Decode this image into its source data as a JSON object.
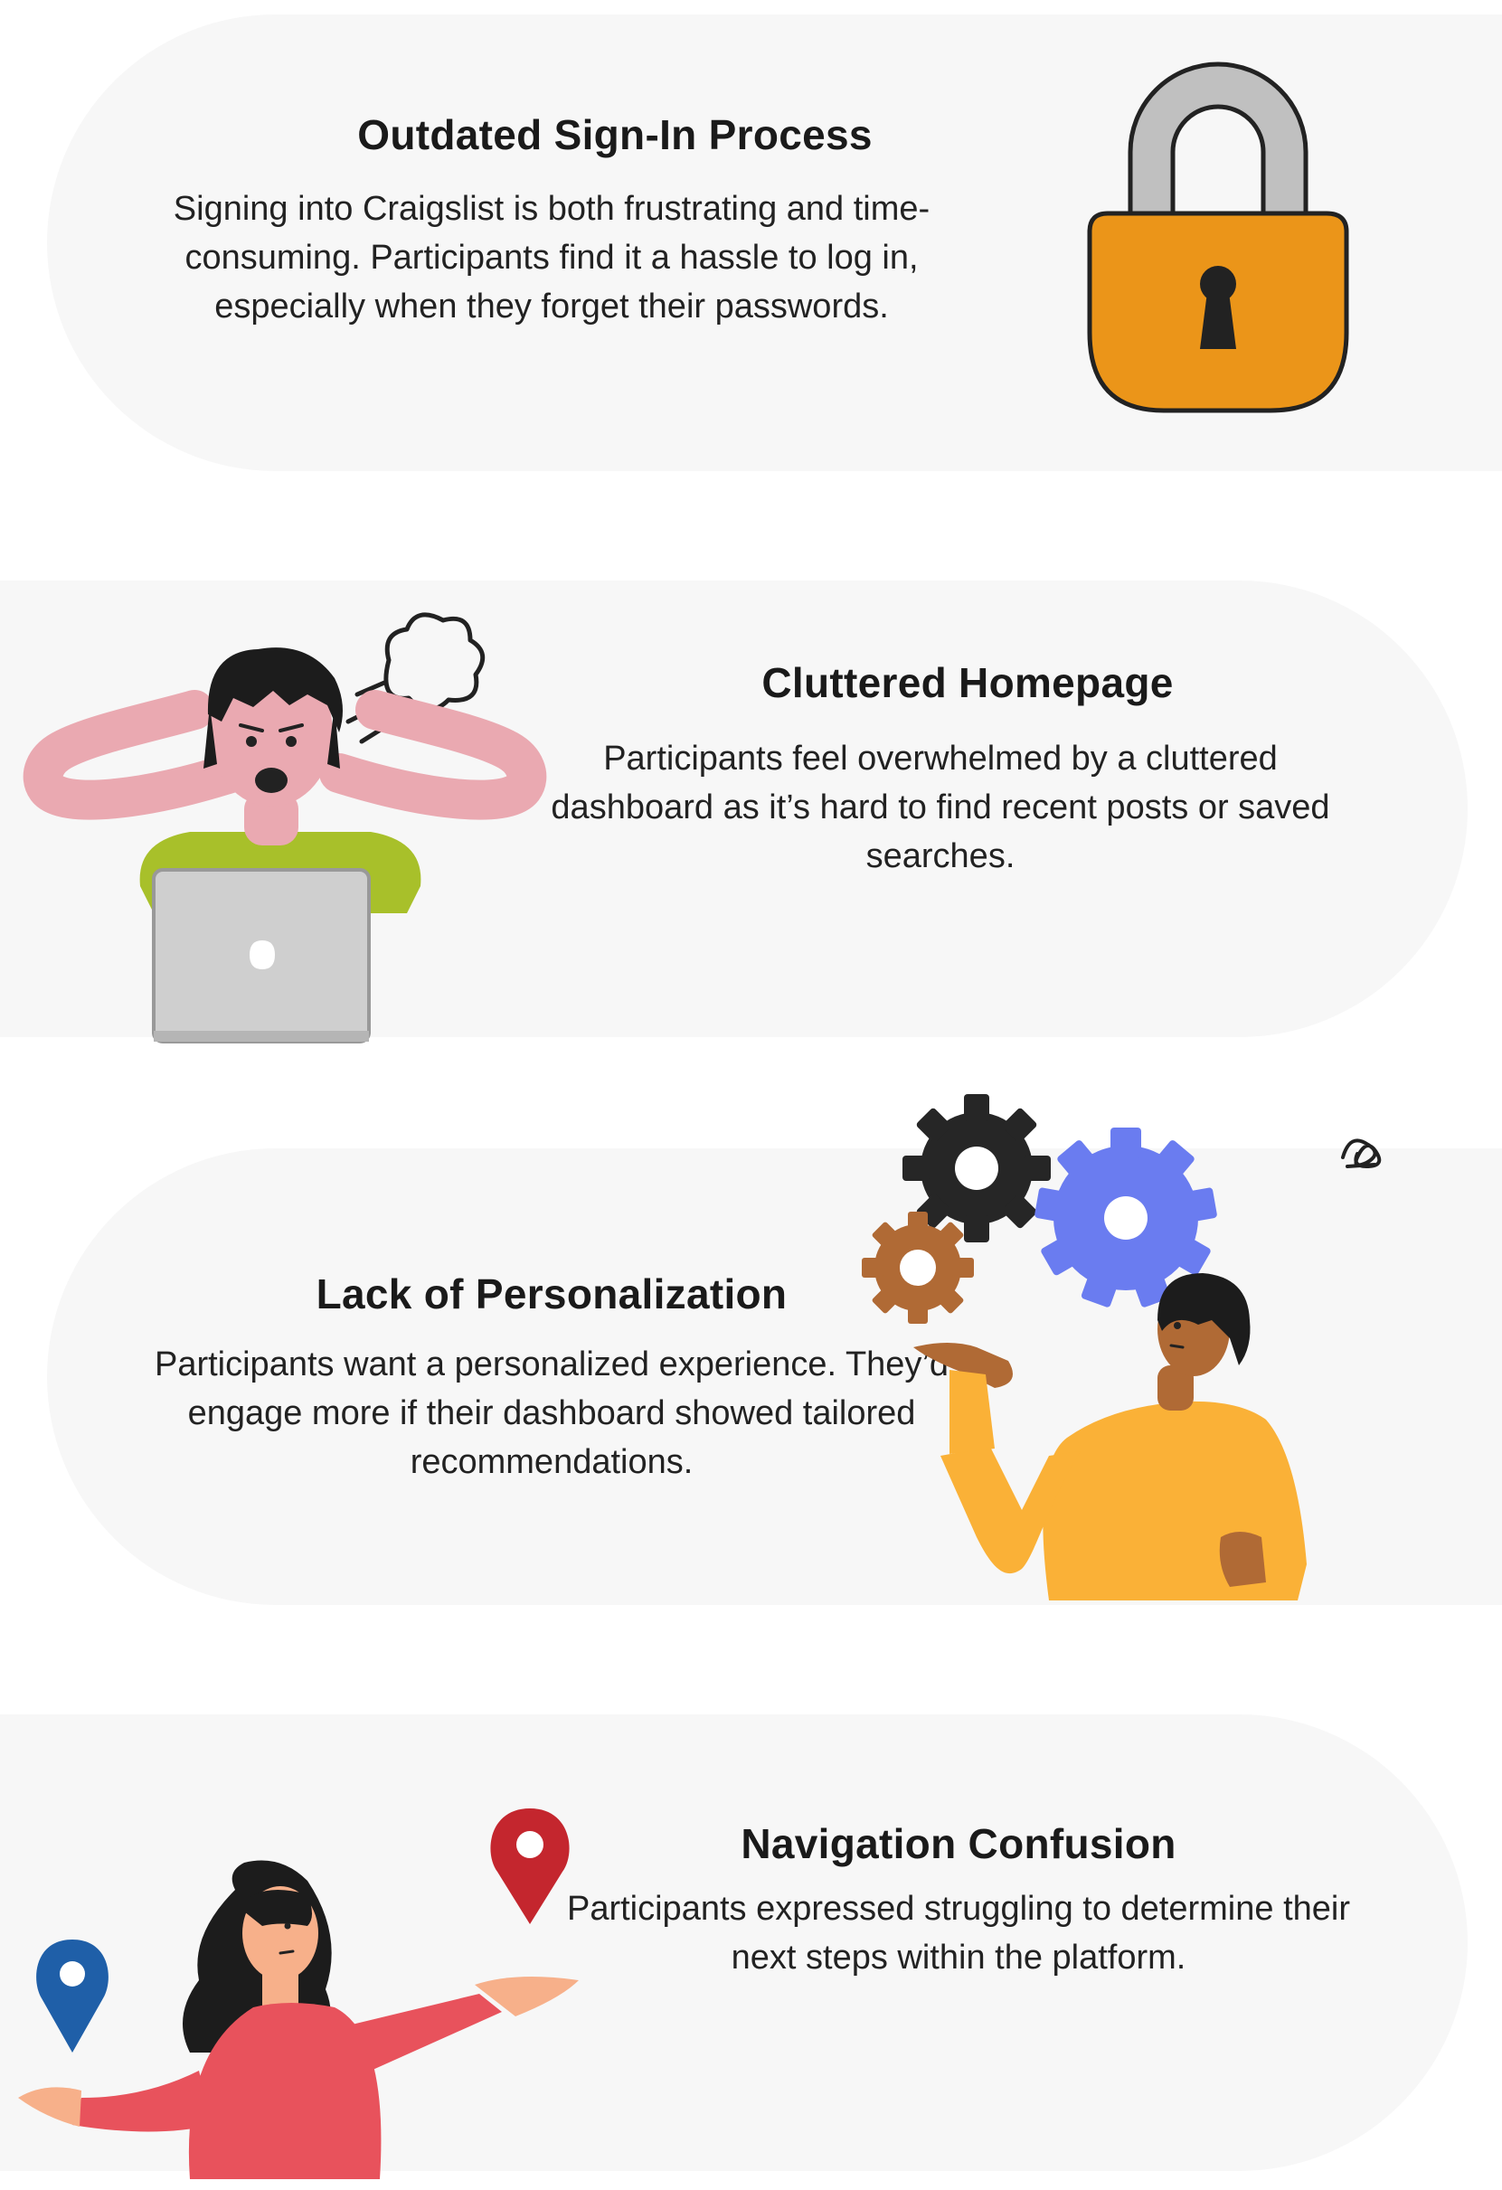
{
  "cards": [
    {
      "title": "Outdated Sign-In Process",
      "body": "Signing into Craigslist is both frustrating and time-consuming. Participants find it a hassle to log in, especially when they forget their passwords.",
      "illustration": "padlock-icon"
    },
    {
      "title": "Cluttered Homepage",
      "body": "Participants feel overwhelmed by a cluttered dashboard as it’s hard to find recent posts or saved searches.",
      "illustration": "stressed-person-laptop"
    },
    {
      "title": "Lack of Personalization",
      "body": "Participants want a personalized experience. They’d engage more if their dashboard showed tailored recommendations.",
      "illustration": "person-with-gears"
    },
    {
      "title": "Navigation Confusion",
      "body": "Participants expressed struggling to determine their next steps within the platform.",
      "illustration": "confused-woman-map-pins"
    }
  ],
  "colors": {
    "card_bg": "#f7f7f7",
    "lock_body": "#eb9519",
    "lock_shackle": "#c0c0c0",
    "gear_dark": "#262626",
    "gear_blue": "#6a7cf0",
    "gear_brown": "#b06a35",
    "shirt_yellow": "#fab137",
    "shirt_green": "#a8c02a",
    "shirt_red": "#e8525c",
    "pin_blue": "#1f5fa8",
    "pin_red": "#c4262e"
  }
}
